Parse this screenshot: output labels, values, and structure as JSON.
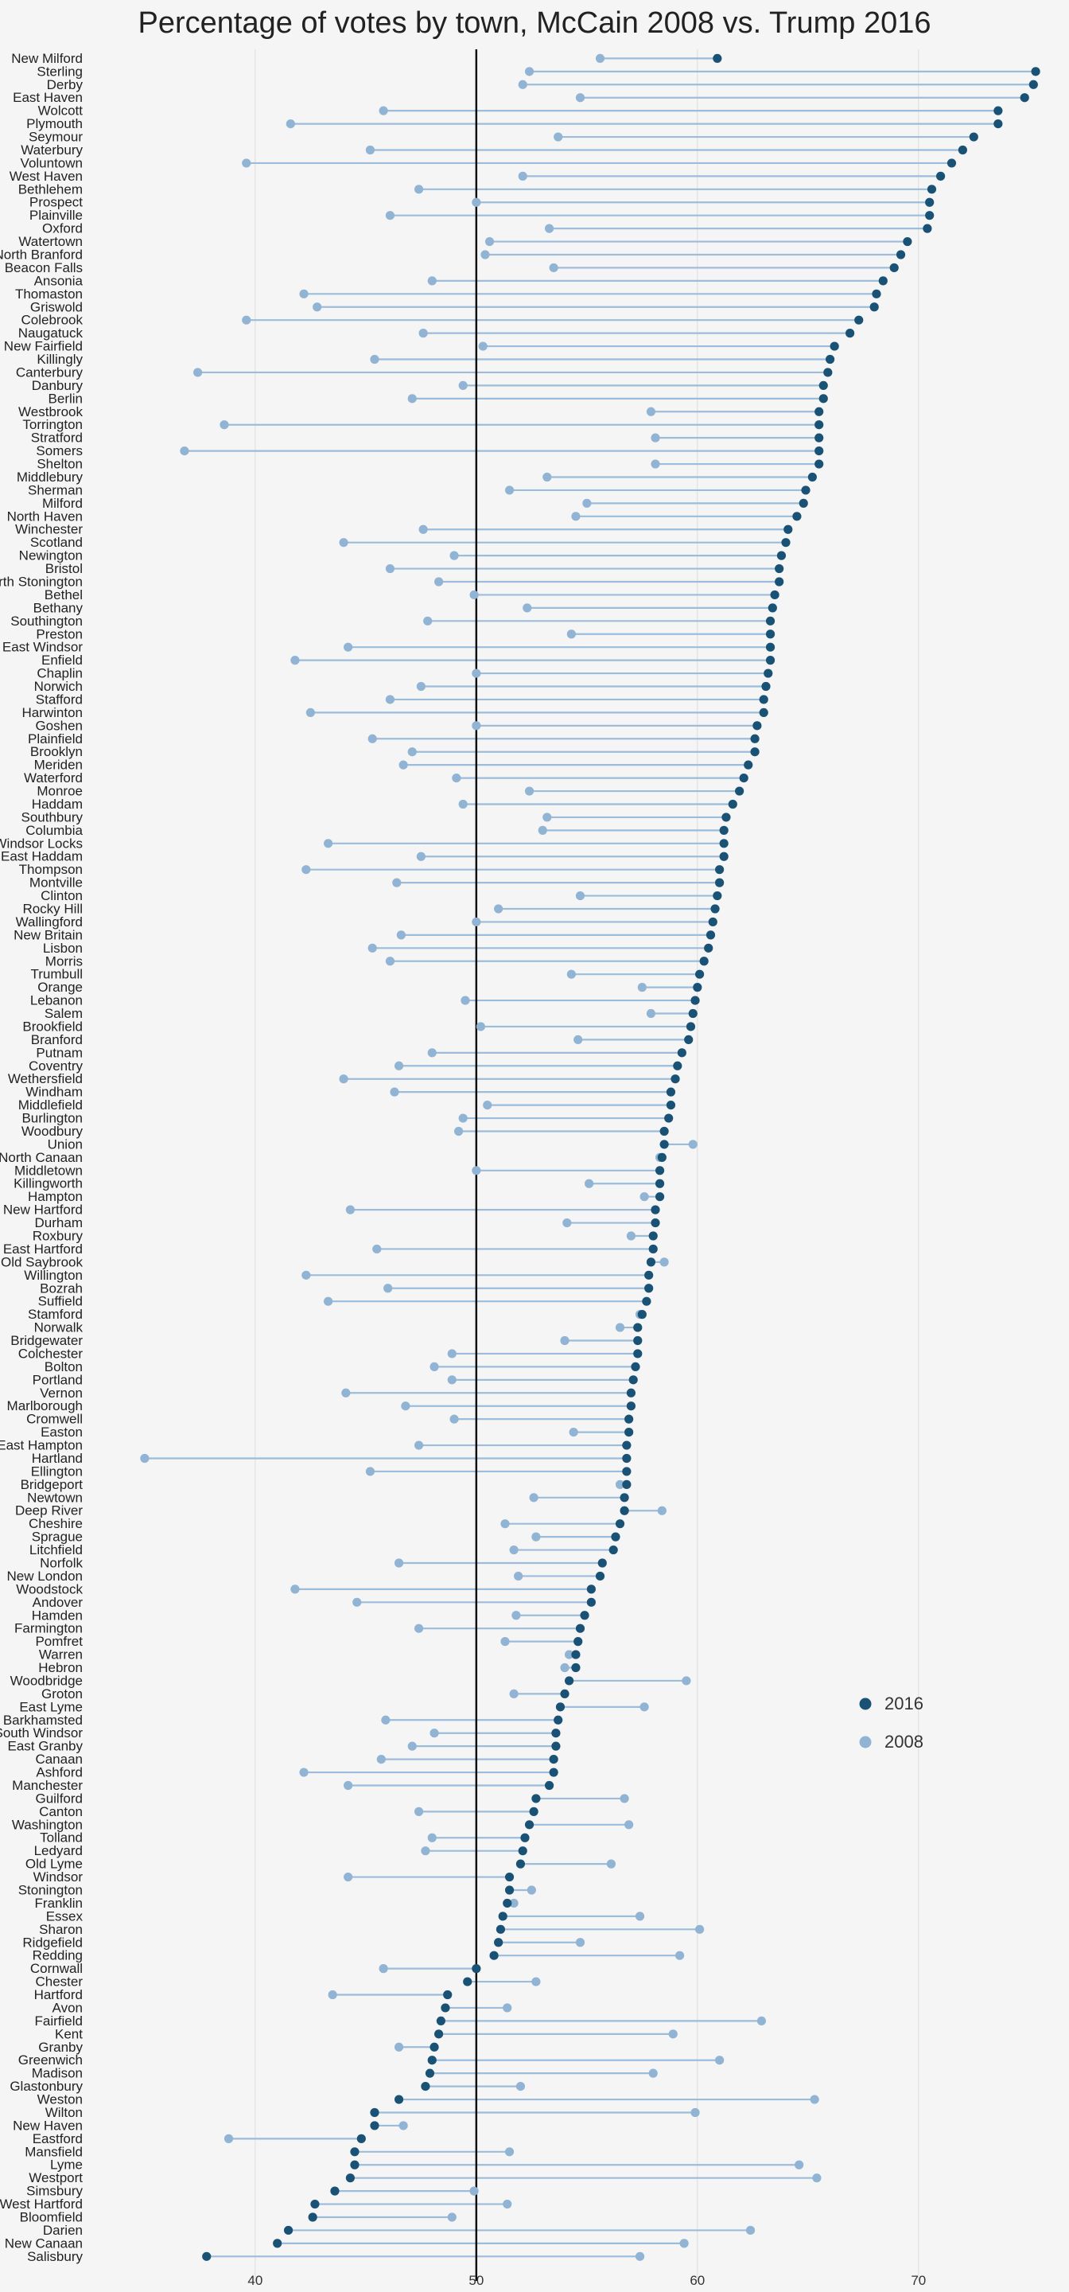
{
  "chart_data": {
    "type": "dot-plot",
    "title": "Percentage of votes by town, McCain 2008 vs. Trump 2016",
    "xlabel": "",
    "ylabel": "",
    "xlim": [
      34.5,
      75.8
    ],
    "xticks": [
      40,
      50,
      60,
      70
    ],
    "reference_line": 50,
    "grid": true,
    "legend_position": "right",
    "colors": {
      "2016": "#1a5276",
      "2008": "#91b4d4",
      "connector": "#9bbcda",
      "reference": "#000000",
      "grid": "#dddddd"
    },
    "series": [
      {
        "name": "2016",
        "field": "y2016"
      },
      {
        "name": "2008",
        "field": "y2008"
      }
    ],
    "towns": [
      {
        "name": "New Milford",
        "y2016": 60.9,
        "y2008": 55.6
      },
      {
        "name": "Sterling",
        "y2016": 75.3,
        "y2008": 52.4
      },
      {
        "name": "Derby",
        "y2016": 75.2,
        "y2008": 52.1
      },
      {
        "name": "East Haven",
        "y2016": 74.8,
        "y2008": 54.7
      },
      {
        "name": "Wolcott",
        "y2016": 73.6,
        "y2008": 45.8
      },
      {
        "name": "Plymouth",
        "y2016": 73.6,
        "y2008": 41.6
      },
      {
        "name": "Seymour",
        "y2016": 72.5,
        "y2008": 53.7
      },
      {
        "name": "Waterbury",
        "y2016": 72.0,
        "y2008": 45.2
      },
      {
        "name": "Voluntown",
        "y2016": 71.5,
        "y2008": 39.6
      },
      {
        "name": "West Haven",
        "y2016": 71.0,
        "y2008": 52.1
      },
      {
        "name": "Bethlehem",
        "y2016": 70.6,
        "y2008": 47.4
      },
      {
        "name": "Prospect",
        "y2016": 70.5,
        "y2008": 50.0
      },
      {
        "name": "Plainville",
        "y2016": 70.5,
        "y2008": 46.1
      },
      {
        "name": "Oxford",
        "y2016": 70.4,
        "y2008": 53.3
      },
      {
        "name": "Watertown",
        "y2016": 69.5,
        "y2008": 50.6
      },
      {
        "name": "North Branford",
        "y2016": 69.2,
        "y2008": 50.4
      },
      {
        "name": "Beacon Falls",
        "y2016": 68.9,
        "y2008": 53.5
      },
      {
        "name": "Ansonia",
        "y2016": 68.4,
        "y2008": 48.0
      },
      {
        "name": "Thomaston",
        "y2016": 68.1,
        "y2008": 42.2
      },
      {
        "name": "Griswold",
        "y2016": 68.0,
        "y2008": 42.8
      },
      {
        "name": "Colebrook",
        "y2016": 67.3,
        "y2008": 39.6
      },
      {
        "name": "Naugatuck",
        "y2016": 66.9,
        "y2008": 47.6
      },
      {
        "name": "New Fairfield",
        "y2016": 66.2,
        "y2008": 50.3
      },
      {
        "name": "Killingly",
        "y2016": 66.0,
        "y2008": 45.4
      },
      {
        "name": "Canterbury",
        "y2016": 65.9,
        "y2008": 37.4
      },
      {
        "name": "Danbury",
        "y2016": 65.7,
        "y2008": 49.4
      },
      {
        "name": "Berlin",
        "y2016": 65.7,
        "y2008": 47.1
      },
      {
        "name": "Westbrook",
        "y2016": 65.5,
        "y2008": 57.9
      },
      {
        "name": "Torrington",
        "y2016": 65.5,
        "y2008": 38.6
      },
      {
        "name": "Stratford",
        "y2016": 65.5,
        "y2008": 58.1
      },
      {
        "name": "Somers",
        "y2016": 65.5,
        "y2008": 36.8
      },
      {
        "name": "Shelton",
        "y2016": 65.5,
        "y2008": 58.1
      },
      {
        "name": "Middlebury",
        "y2016": 65.2,
        "y2008": 53.2
      },
      {
        "name": "Sherman",
        "y2016": 64.9,
        "y2008": 51.5
      },
      {
        "name": "Milford",
        "y2016": 64.8,
        "y2008": 55.0
      },
      {
        "name": "North Haven",
        "y2016": 64.5,
        "y2008": 54.5
      },
      {
        "name": "Winchester",
        "y2016": 64.1,
        "y2008": 47.6
      },
      {
        "name": "Scotland",
        "y2016": 64.0,
        "y2008": 44.0
      },
      {
        "name": "Newington",
        "y2016": 63.8,
        "y2008": 49.0
      },
      {
        "name": "Bristol",
        "y2016": 63.7,
        "y2008": 46.1
      },
      {
        "name": "North Stonington",
        "y2016": 63.7,
        "y2008": 48.3
      },
      {
        "name": "Bethel",
        "y2016": 63.5,
        "y2008": 49.9
      },
      {
        "name": "Bethany",
        "y2016": 63.4,
        "y2008": 52.3
      },
      {
        "name": "Southington",
        "y2016": 63.3,
        "y2008": 47.8
      },
      {
        "name": "Preston",
        "y2016": 63.3,
        "y2008": 54.3
      },
      {
        "name": "East Windsor",
        "y2016": 63.3,
        "y2008": 44.2
      },
      {
        "name": "Enfield",
        "y2016": 63.3,
        "y2008": 41.8
      },
      {
        "name": "Chaplin",
        "y2016": 63.2,
        "y2008": 50.0
      },
      {
        "name": "Norwich",
        "y2016": 63.1,
        "y2008": 47.5
      },
      {
        "name": "Stafford",
        "y2016": 63.0,
        "y2008": 46.1
      },
      {
        "name": "Harwinton",
        "y2016": 63.0,
        "y2008": 42.5
      },
      {
        "name": "Goshen",
        "y2016": 62.7,
        "y2008": 50.0
      },
      {
        "name": "Plainfield",
        "y2016": 62.6,
        "y2008": 45.3
      },
      {
        "name": "Brooklyn",
        "y2016": 62.6,
        "y2008": 47.1
      },
      {
        "name": "Meriden",
        "y2016": 62.3,
        "y2008": 46.7
      },
      {
        "name": "Waterford",
        "y2016": 62.1,
        "y2008": 49.1
      },
      {
        "name": "Monroe",
        "y2016": 61.9,
        "y2008": 52.4
      },
      {
        "name": "Haddam",
        "y2016": 61.6,
        "y2008": 49.4
      },
      {
        "name": "Southbury",
        "y2016": 61.3,
        "y2008": 53.2
      },
      {
        "name": "Columbia",
        "y2016": 61.2,
        "y2008": 53.0
      },
      {
        "name": "Windsor Locks",
        "y2016": 61.2,
        "y2008": 43.3
      },
      {
        "name": "East Haddam",
        "y2016": 61.2,
        "y2008": 47.5
      },
      {
        "name": "Thompson",
        "y2016": 61.0,
        "y2008": 42.3
      },
      {
        "name": "Montville",
        "y2016": 61.0,
        "y2008": 46.4
      },
      {
        "name": "Clinton",
        "y2016": 60.9,
        "y2008": 54.7
      },
      {
        "name": "Rocky Hill",
        "y2016": 60.8,
        "y2008": 51.0
      },
      {
        "name": "Wallingford",
        "y2016": 60.7,
        "y2008": 50.0
      },
      {
        "name": "New Britain",
        "y2016": 60.6,
        "y2008": 46.6
      },
      {
        "name": "Lisbon",
        "y2016": 60.5,
        "y2008": 45.3
      },
      {
        "name": "Morris",
        "y2016": 60.3,
        "y2008": 46.1
      },
      {
        "name": "Trumbull",
        "y2016": 60.1,
        "y2008": 54.3
      },
      {
        "name": "Orange",
        "y2016": 60.0,
        "y2008": 57.5
      },
      {
        "name": "Lebanon",
        "y2016": 59.9,
        "y2008": 49.5
      },
      {
        "name": "Salem",
        "y2016": 59.8,
        "y2008": 57.9
      },
      {
        "name": "Brookfield",
        "y2016": 59.7,
        "y2008": 50.2
      },
      {
        "name": "Branford",
        "y2016": 59.6,
        "y2008": 54.6
      },
      {
        "name": "Putnam",
        "y2016": 59.3,
        "y2008": 48.0
      },
      {
        "name": "Coventry",
        "y2016": 59.1,
        "y2008": 46.5
      },
      {
        "name": "Wethersfield",
        "y2016": 59.0,
        "y2008": 44.0
      },
      {
        "name": "Windham",
        "y2016": 58.8,
        "y2008": 46.3
      },
      {
        "name": "Middlefield",
        "y2016": 58.8,
        "y2008": 50.5
      },
      {
        "name": "Burlington",
        "y2016": 58.7,
        "y2008": 49.4
      },
      {
        "name": "Woodbury",
        "y2016": 58.5,
        "y2008": 49.2
      },
      {
        "name": "Union",
        "y2016": 58.5,
        "y2008": 59.8
      },
      {
        "name": "North Canaan",
        "y2016": 58.4,
        "y2008": 58.3
      },
      {
        "name": "Middletown",
        "y2016": 58.3,
        "y2008": 50.0
      },
      {
        "name": "Killingworth",
        "y2016": 58.3,
        "y2008": 55.1
      },
      {
        "name": "Hampton",
        "y2016": 58.3,
        "y2008": 57.6
      },
      {
        "name": "New Hartford",
        "y2016": 58.1,
        "y2008": 44.3
      },
      {
        "name": "Durham",
        "y2016": 58.1,
        "y2008": 54.1
      },
      {
        "name": "Roxbury",
        "y2016": 58.0,
        "y2008": 57.0
      },
      {
        "name": "East Hartford",
        "y2016": 58.0,
        "y2008": 45.5
      },
      {
        "name": "Old Saybrook",
        "y2016": 57.9,
        "y2008": 58.5
      },
      {
        "name": "Willington",
        "y2016": 57.8,
        "y2008": 42.3
      },
      {
        "name": "Bozrah",
        "y2016": 57.8,
        "y2008": 46.0
      },
      {
        "name": "Suffield",
        "y2016": 57.7,
        "y2008": 43.3
      },
      {
        "name": "Stamford",
        "y2016": 57.5,
        "y2008": 57.4
      },
      {
        "name": "Norwalk",
        "y2016": 57.3,
        "y2008": 56.5
      },
      {
        "name": "Bridgewater",
        "y2016": 57.3,
        "y2008": 54.0
      },
      {
        "name": "Colchester",
        "y2016": 57.3,
        "y2008": 48.9
      },
      {
        "name": "Bolton",
        "y2016": 57.2,
        "y2008": 48.1
      },
      {
        "name": "Portland",
        "y2016": 57.1,
        "y2008": 48.9
      },
      {
        "name": "Vernon",
        "y2016": 57.0,
        "y2008": 44.1
      },
      {
        "name": "Marlborough",
        "y2016": 57.0,
        "y2008": 46.8
      },
      {
        "name": "Cromwell",
        "y2016": 56.9,
        "y2008": 49.0
      },
      {
        "name": "Easton",
        "y2016": 56.9,
        "y2008": 54.4
      },
      {
        "name": "East Hampton",
        "y2016": 56.8,
        "y2008": 47.4
      },
      {
        "name": "Hartland",
        "y2016": 56.8,
        "y2008": 35.0
      },
      {
        "name": "Ellington",
        "y2016": 56.8,
        "y2008": 45.2
      },
      {
        "name": "Bridgeport",
        "y2016": 56.8,
        "y2008": 56.5
      },
      {
        "name": "Newtown",
        "y2016": 56.7,
        "y2008": 52.6
      },
      {
        "name": "Deep River",
        "y2016": 56.7,
        "y2008": 58.4
      },
      {
        "name": "Cheshire",
        "y2016": 56.5,
        "y2008": 51.3
      },
      {
        "name": "Sprague",
        "y2016": 56.3,
        "y2008": 52.7
      },
      {
        "name": "Litchfield",
        "y2016": 56.2,
        "y2008": 51.7
      },
      {
        "name": "Norfolk",
        "y2016": 55.7,
        "y2008": 46.5
      },
      {
        "name": "New London",
        "y2016": 55.6,
        "y2008": 51.9
      },
      {
        "name": "Woodstock",
        "y2016": 55.2,
        "y2008": 41.8
      },
      {
        "name": "Andover",
        "y2016": 55.2,
        "y2008": 44.6
      },
      {
        "name": "Hamden",
        "y2016": 54.9,
        "y2008": 51.8
      },
      {
        "name": "Farmington",
        "y2016": 54.7,
        "y2008": 47.4
      },
      {
        "name": "Pomfret",
        "y2016": 54.6,
        "y2008": 51.3
      },
      {
        "name": "Warren",
        "y2016": 54.5,
        "y2008": 54.2
      },
      {
        "name": "Hebron",
        "y2016": 54.5,
        "y2008": 54.0
      },
      {
        "name": "Woodbridge",
        "y2016": 54.2,
        "y2008": 59.5
      },
      {
        "name": "Groton",
        "y2016": 54.0,
        "y2008": 51.7
      },
      {
        "name": "East Lyme",
        "y2016": 53.8,
        "y2008": 57.6
      },
      {
        "name": "Barkhamsted",
        "y2016": 53.7,
        "y2008": 45.9
      },
      {
        "name": "South Windsor",
        "y2016": 53.6,
        "y2008": 48.1
      },
      {
        "name": "East Granby",
        "y2016": 53.6,
        "y2008": 47.1
      },
      {
        "name": "Canaan",
        "y2016": 53.5,
        "y2008": 45.7
      },
      {
        "name": "Ashford",
        "y2016": 53.5,
        "y2008": 42.2
      },
      {
        "name": "Manchester",
        "y2016": 53.3,
        "y2008": 44.2
      },
      {
        "name": "Guilford",
        "y2016": 52.7,
        "y2008": 56.7
      },
      {
        "name": "Canton",
        "y2016": 52.6,
        "y2008": 47.4
      },
      {
        "name": "Washington",
        "y2016": 52.4,
        "y2008": 56.9
      },
      {
        "name": "Tolland",
        "y2016": 52.2,
        "y2008": 48.0
      },
      {
        "name": "Ledyard",
        "y2016": 52.1,
        "y2008": 47.7
      },
      {
        "name": "Old Lyme",
        "y2016": 52.0,
        "y2008": 56.1
      },
      {
        "name": "Windsor",
        "y2016": 51.5,
        "y2008": 44.2
      },
      {
        "name": "Stonington",
        "y2016": 51.5,
        "y2008": 52.5
      },
      {
        "name": "Franklin",
        "y2016": 51.4,
        "y2008": 51.7
      },
      {
        "name": "Essex",
        "y2016": 51.2,
        "y2008": 57.4
      },
      {
        "name": "Sharon",
        "y2016": 51.1,
        "y2008": 60.1
      },
      {
        "name": "Ridgefield",
        "y2016": 51.0,
        "y2008": 54.7
      },
      {
        "name": "Redding",
        "y2016": 50.8,
        "y2008": 59.2
      },
      {
        "name": "Cornwall",
        "y2016": 50.0,
        "y2008": 45.8
      },
      {
        "name": "Chester",
        "y2016": 49.6,
        "y2008": 52.7
      },
      {
        "name": "Hartford",
        "y2016": 48.7,
        "y2008": 43.5
      },
      {
        "name": "Avon",
        "y2016": 48.6,
        "y2008": 51.4
      },
      {
        "name": "Fairfield",
        "y2016": 48.4,
        "y2008": 62.9
      },
      {
        "name": "Kent",
        "y2016": 48.3,
        "y2008": 58.9
      },
      {
        "name": "Granby",
        "y2016": 48.1,
        "y2008": 46.5
      },
      {
        "name": "Greenwich",
        "y2016": 48.0,
        "y2008": 61.0
      },
      {
        "name": "Madison",
        "y2016": 47.9,
        "y2008": 58.0
      },
      {
        "name": "Glastonbury",
        "y2016": 47.7,
        "y2008": 52.0
      },
      {
        "name": "Weston",
        "y2016": 46.5,
        "y2008": 65.3
      },
      {
        "name": "Wilton",
        "y2016": 45.4,
        "y2008": 59.9
      },
      {
        "name": "New Haven",
        "y2016": 45.4,
        "y2008": 46.7
      },
      {
        "name": "Eastford",
        "y2016": 44.8,
        "y2008": 38.8
      },
      {
        "name": "Mansfield",
        "y2016": 44.5,
        "y2008": 51.5
      },
      {
        "name": "Lyme",
        "y2016": 44.5,
        "y2008": 64.6
      },
      {
        "name": "Westport",
        "y2016": 44.3,
        "y2008": 65.4
      },
      {
        "name": "Simsbury",
        "y2016": 43.6,
        "y2008": 49.9
      },
      {
        "name": "West Hartford",
        "y2016": 42.7,
        "y2008": 51.4
      },
      {
        "name": "Bloomfield",
        "y2016": 42.6,
        "y2008": 48.9
      },
      {
        "name": "Darien",
        "y2016": 41.5,
        "y2008": 62.4
      },
      {
        "name": "New Canaan",
        "y2016": 41.0,
        "y2008": 59.4
      },
      {
        "name": "Salisbury",
        "y2016": 37.8,
        "y2008": 57.4
      }
    ]
  }
}
